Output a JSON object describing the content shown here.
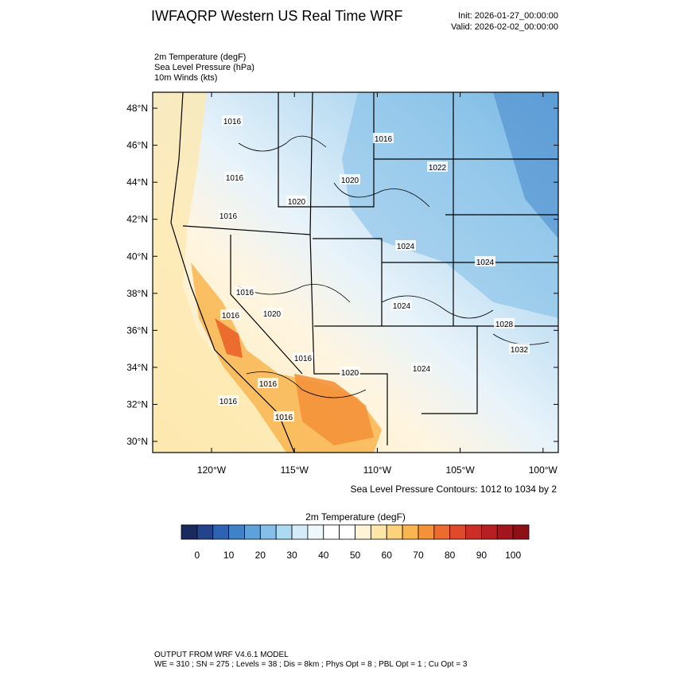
{
  "header": {
    "title": "IWFAQRP Western US Real Time WRF",
    "init": "Init: 2026-01-27_00:00:00",
    "valid": "Valid: 2026-02-02_00:00:00"
  },
  "fields": [
    "2m Temperature   (degF)",
    "Sea Level Pressure   (hPa)",
    "10m Winds   (kts)"
  ],
  "map": {
    "lat_labels": [
      "30°N",
      "32°N",
      "34°N",
      "36°N",
      "38°N",
      "40°N",
      "42°N",
      "44°N",
      "46°N",
      "48°N"
    ],
    "lon_labels": [
      "120°W",
      "115°W",
      "110°W",
      "105°W",
      "100°W"
    ],
    "contour_labels": [
      "1016",
      "1016",
      "1022",
      "1016",
      "1020",
      "1020",
      "1016",
      "1024",
      "1024",
      "1016",
      "1024",
      "1016",
      "1020",
      "1028",
      "1032",
      "1016",
      "1024",
      "1020",
      "1016",
      "1016",
      "1016"
    ],
    "contour_note": "Sea Level Pressure Contours: 1012 to 1034 by 2"
  },
  "colorbar": {
    "title": "2m Temperature  (degF)",
    "labels": [
      "0",
      "10",
      "20",
      "30",
      "40",
      "50",
      "60",
      "70",
      "80",
      "90",
      "100"
    ],
    "colors": [
      "#1b2a5e",
      "#23438a",
      "#2d63b3",
      "#3f82c8",
      "#5fa2da",
      "#86bfe8",
      "#addaf3",
      "#d3ecf8",
      "#eef7fc",
      "#ffffff",
      "#ffffff",
      "#fff5d6",
      "#fde7a8",
      "#fcd27a",
      "#f9b54f",
      "#f4923a",
      "#ec6c2f",
      "#e04a2a",
      "#cc2e26",
      "#b81f22",
      "#a3161c",
      "#8c1016"
    ]
  },
  "footer": {
    "line1": "OUTPUT FROM WRF V4.6.1 MODEL",
    "line2": "WE = 310 ; SN = 275 ; Levels = 38 ; Dis = 8km ; Phys Opt = 8 ; PBL Opt = 1 ; Cu Opt = 3"
  }
}
